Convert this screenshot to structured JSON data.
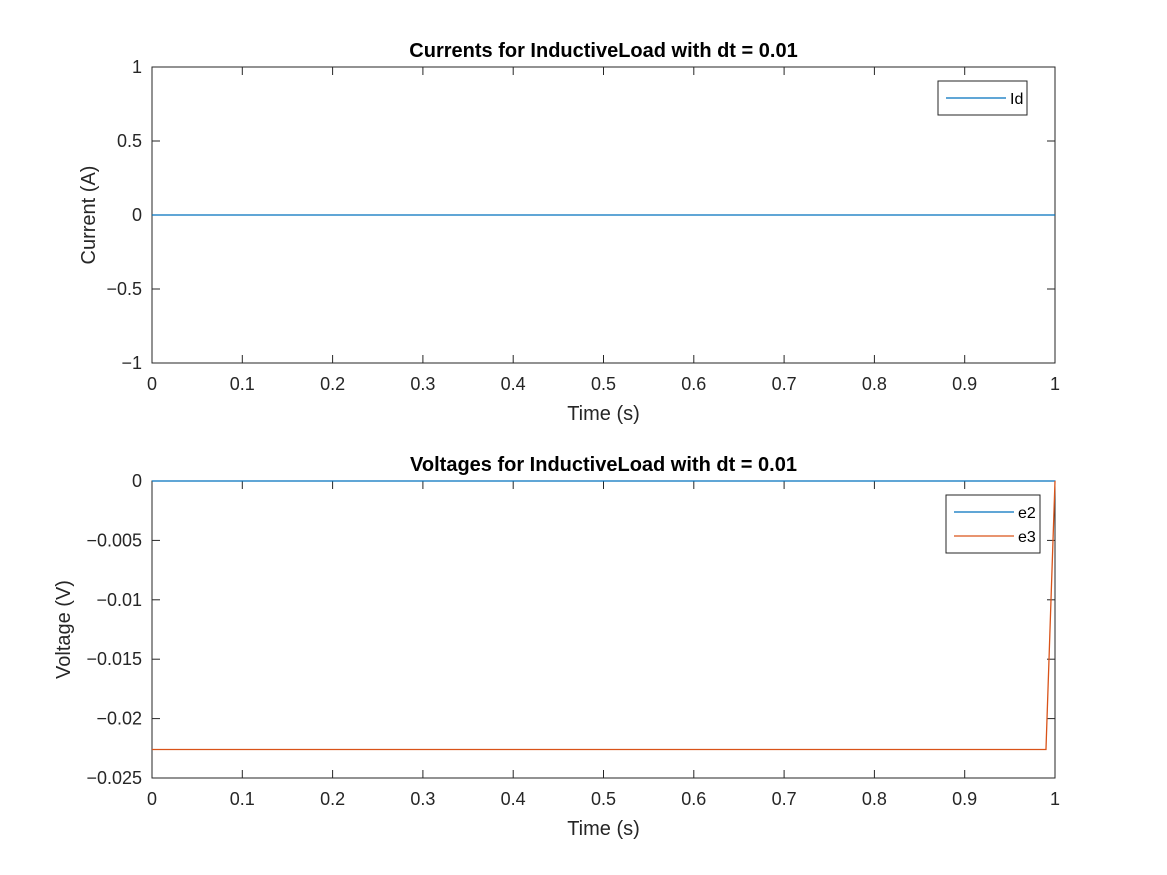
{
  "chart_data": [
    {
      "type": "line",
      "title": "Currents for InductiveLoad with dt = 0.01",
      "xlabel": "Time (s)",
      "ylabel": "Current (A)",
      "xlim": [
        0,
        1
      ],
      "ylim": [
        -1,
        1
      ],
      "xticks": [
        0,
        0.1,
        0.2,
        0.3,
        0.4,
        0.5,
        0.6,
        0.7,
        0.8,
        0.9,
        1
      ],
      "xtick_labels": [
        "0",
        "0.1",
        "0.2",
        "0.3",
        "0.4",
        "0.5",
        "0.6",
        "0.7",
        "0.8",
        "0.9",
        "1"
      ],
      "yticks": [
        -1,
        -0.5,
        0,
        0.5,
        1
      ],
      "ytick_labels": [
        "-1",
        "-0.5",
        "0",
        "0.5",
        "1"
      ],
      "grid": false,
      "legend_position": "top-right",
      "series": [
        {
          "name": "Id",
          "color": "#0072BD",
          "x": [
            0,
            1
          ],
          "y": [
            0,
            0
          ]
        }
      ]
    },
    {
      "type": "line",
      "title": "Voltages for InductiveLoad with dt = 0.01",
      "xlabel": "Time (s)",
      "ylabel": "Voltage (V)",
      "xlim": [
        0,
        1
      ],
      "ylim": [
        -0.025,
        0
      ],
      "xticks": [
        0,
        0.1,
        0.2,
        0.3,
        0.4,
        0.5,
        0.6,
        0.7,
        0.8,
        0.9,
        1
      ],
      "xtick_labels": [
        "0",
        "0.1",
        "0.2",
        "0.3",
        "0.4",
        "0.5",
        "0.6",
        "0.7",
        "0.8",
        "0.9",
        "1"
      ],
      "yticks": [
        -0.025,
        -0.02,
        -0.015,
        -0.01,
        -0.005,
        0
      ],
      "ytick_labels": [
        "-0.025",
        "-0.02",
        "-0.015",
        "-0.01",
        "-0.005",
        "0"
      ],
      "grid": false,
      "legend_position": "top-right",
      "series": [
        {
          "name": "e2",
          "color": "#0072BD",
          "x": [
            0,
            1
          ],
          "y": [
            0,
            0
          ]
        },
        {
          "name": "e3",
          "color": "#D95319",
          "x": [
            0,
            0.99,
            1
          ],
          "y": [
            -0.0226,
            -0.0226,
            0
          ]
        }
      ]
    }
  ]
}
